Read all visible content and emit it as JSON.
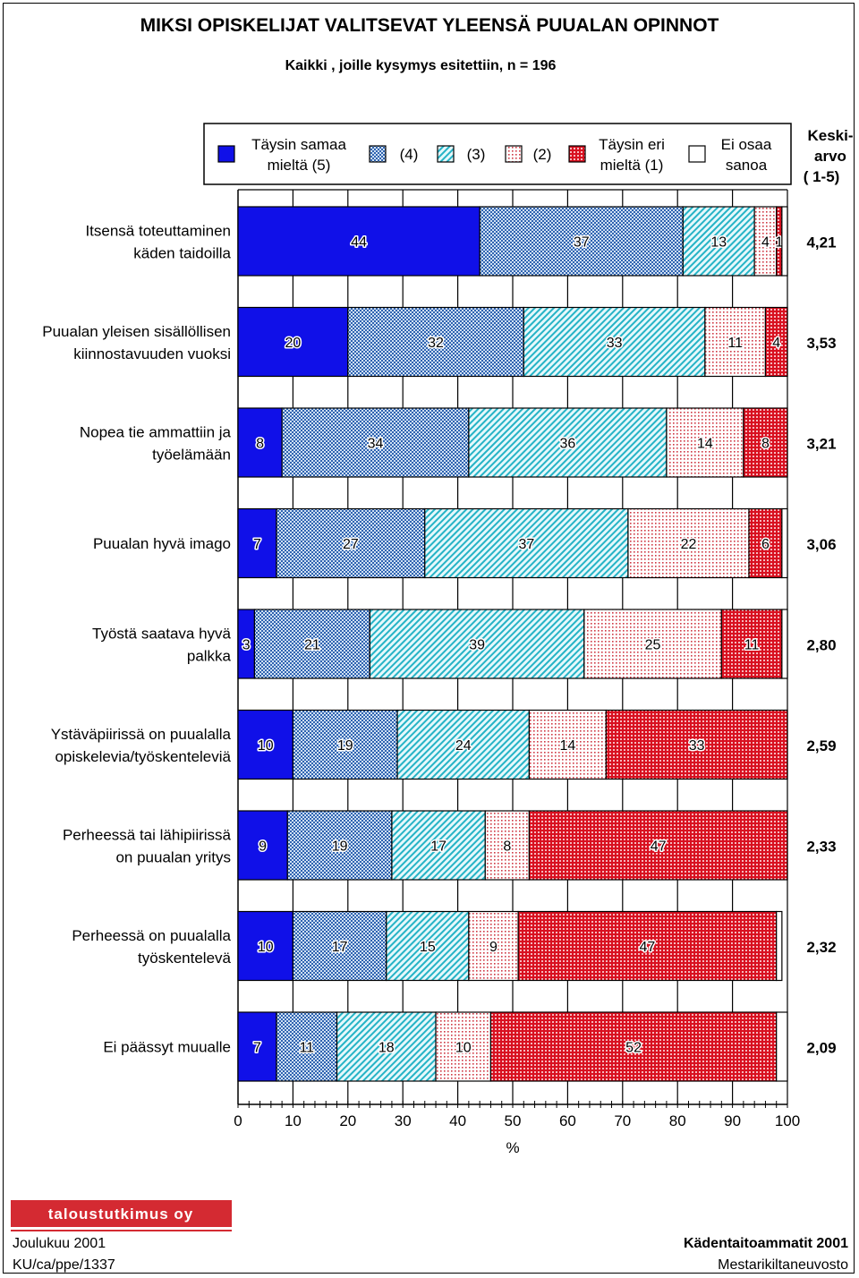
{
  "chart_data": {
    "type": "bar",
    "orientation": "horizontal",
    "stacked": true,
    "title": "MIKSI OPISKELIJAT VALITSEVAT YLEENSÄ PUUALAN OPINNOT",
    "subtitle": "Kaikki , joille kysymys esitettiin, n = 196",
    "xlabel": "%",
    "xlim": [
      0,
      100
    ],
    "xticks": [
      "0",
      "10",
      "20",
      "30",
      "40",
      "50",
      "60",
      "70",
      "80",
      "90",
      "100"
    ],
    "legend_title": [
      "Keski-",
      "arvo",
      "( 1-5)"
    ],
    "series": [
      {
        "name": "Täysin samaa mieltä (5)",
        "label_lines": [
          "Täysin samaa",
          "mieltä (5)"
        ],
        "color": "#1010e8",
        "pattern": "solid"
      },
      {
        "name": "(4)",
        "label_lines": [
          "(4)"
        ],
        "color": "#3a6fb8",
        "pattern": "checker"
      },
      {
        "name": "(3)",
        "label_lines": [
          "(3)"
        ],
        "color": "#2fb8c8",
        "pattern": "diagonal"
      },
      {
        "name": "(2)",
        "label_lines": [
          "(2)"
        ],
        "color": "#d04048",
        "pattern": "dots"
      },
      {
        "name": "Täysin eri mieltä (1)",
        "label_lines": [
          "Täysin eri",
          "mieltä (1)"
        ],
        "color": "#d81020",
        "pattern": "grid"
      },
      {
        "name": "Ei osaa sanoa",
        "label_lines": [
          "Ei osaa",
          "sanoa"
        ],
        "color": "#ffffff",
        "pattern": "none"
      }
    ],
    "categories": [
      {
        "label": [
          "Itsensä toteuttaminen",
          "käden taidoilla"
        ],
        "values": [
          44,
          37,
          13,
          4,
          1,
          1
        ],
        "mean": "4,21"
      },
      {
        "label": [
          "Puualan yleisen sisällöllisen",
          "kiinnostavuuden vuoksi"
        ],
        "values": [
          20,
          32,
          33,
          11,
          4,
          0
        ],
        "mean": "3,53"
      },
      {
        "label": [
          "Nopea tie ammattiin ja",
          "työelämään"
        ],
        "values": [
          8,
          34,
          36,
          14,
          8,
          0
        ],
        "mean": "3,21"
      },
      {
        "label": [
          "Puualan hyvä imago"
        ],
        "values": [
          7,
          27,
          37,
          22,
          6,
          1
        ],
        "mean": "3,06"
      },
      {
        "label": [
          "Työstä saatava hyvä",
          "palkka"
        ],
        "values": [
          3,
          21,
          39,
          25,
          11,
          1
        ],
        "mean": "2,80"
      },
      {
        "label": [
          "Ystäväpiirissä on puualalla",
          "opiskelevia/työskenteleviä"
        ],
        "values": [
          10,
          19,
          24,
          14,
          33,
          0
        ],
        "mean": "2,59"
      },
      {
        "label": [
          "Perheessä tai lähipiirissä",
          "on puualan yritys"
        ],
        "values": [
          9,
          19,
          17,
          8,
          47,
          0
        ],
        "mean": "2,33"
      },
      {
        "label": [
          "Perheessä on puualalla",
          "työskentelevä"
        ],
        "values": [
          10,
          17,
          15,
          9,
          47,
          1
        ],
        "mean": "2,32"
      },
      {
        "label": [
          "Ei päässyt muualle"
        ],
        "values": [
          7,
          11,
          18,
          10,
          52,
          2
        ],
        "mean": "2,09"
      }
    ]
  },
  "footer": {
    "logo_text": "taloustutkimus oy",
    "left_line1": "Joulukuu 2001",
    "left_line2": "KU/ca/ppe/1337",
    "right_line1": "Kädentaitoammatit 2001",
    "right_line2": "Mestarikiltaneuvosto"
  }
}
